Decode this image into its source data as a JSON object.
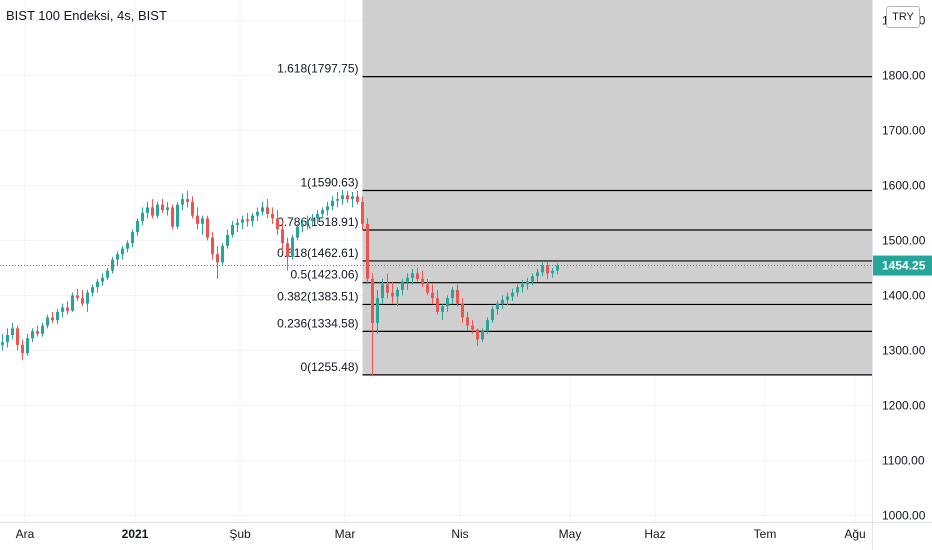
{
  "header": {
    "title": "BIST 100 Endeksi, 4s, BIST",
    "currency_button": "TRY"
  },
  "price_axis": {
    "top_cut_label": "1900.00",
    "last_price_label": "1454.25"
  },
  "colors": {
    "up": "#26a69a",
    "down": "#ef5350",
    "fib_zone": "#cccccc",
    "last_price": "#26a69a"
  },
  "chart_data": {
    "type": "candlestick",
    "symbol": "BIST 100 Endeksi",
    "interval": "4s",
    "exchange": "BIST",
    "currency": "TRY",
    "y_ticks": [
      1000,
      1100,
      1200,
      1300,
      1400,
      1500,
      1600,
      1700,
      1800,
      1900
    ],
    "y_tick_labels": [
      "1000.00",
      "1100.00",
      "1200.00",
      "1300.00",
      "1400.00",
      "1500.00",
      "1600.00",
      "1700.00",
      "1800.00",
      "1900.00"
    ],
    "ylim": [
      988,
      1937
    ],
    "x_ticks": [
      {
        "label": "Ara",
        "bar": 5,
        "bold": false
      },
      {
        "label": "2021",
        "bar": 27,
        "bold": true
      },
      {
        "label": "Şub",
        "bar": 48,
        "bold": false
      },
      {
        "label": "Mar",
        "bar": 69,
        "bold": false
      },
      {
        "label": "Nis",
        "bar": 92,
        "bold": false
      },
      {
        "label": "May",
        "bar": 114,
        "bold": false
      },
      {
        "label": "Haz",
        "bar": 131,
        "bold": false
      },
      {
        "label": "Tem",
        "bar": 153,
        "bold": false
      },
      {
        "label": "Ağu",
        "bar": 171,
        "bold": false
      }
    ],
    "xlim": [
      0,
      174
    ],
    "last_price": 1454.25,
    "fibonacci": {
      "start_bar": 72.5,
      "levels": [
        {
          "ratio": "1.618",
          "price": 1797.75,
          "label": "1.618(1797.75)"
        },
        {
          "ratio": "1",
          "price": 1590.63,
          "label": "1(1590.63)"
        },
        {
          "ratio": "0.786",
          "price": 1518.91,
          "label": "0.786(1518.91)"
        },
        {
          "ratio": "0.618",
          "price": 1462.61,
          "label": "0.618(1462.61)"
        },
        {
          "ratio": "0.5",
          "price": 1423.06,
          "label": "0.5(1423.06)"
        },
        {
          "ratio": "0.382",
          "price": 1383.51,
          "label": "0.382(1383.51)"
        },
        {
          "ratio": "0.236",
          "price": 1334.58,
          "label": "0.236(1334.58)"
        },
        {
          "ratio": "0",
          "price": 1255.48,
          "label": "0(1255.48)"
        }
      ]
    },
    "candles": [
      [
        1310,
        1330,
        1300,
        1315
      ],
      [
        1315,
        1340,
        1305,
        1328
      ],
      [
        1328,
        1350,
        1320,
        1340
      ],
      [
        1340,
        1345,
        1300,
        1310
      ],
      [
        1310,
        1320,
        1283,
        1295
      ],
      [
        1295,
        1330,
        1290,
        1322
      ],
      [
        1322,
        1340,
        1315,
        1335
      ],
      [
        1335,
        1345,
        1325,
        1330
      ],
      [
        1330,
        1350,
        1325,
        1345
      ],
      [
        1345,
        1365,
        1340,
        1360
      ],
      [
        1360,
        1370,
        1350,
        1355
      ],
      [
        1355,
        1375,
        1348,
        1370
      ],
      [
        1370,
        1385,
        1360,
        1378
      ],
      [
        1378,
        1390,
        1365,
        1372
      ],
      [
        1372,
        1405,
        1370,
        1400
      ],
      [
        1400,
        1412,
        1390,
        1395
      ],
      [
        1395,
        1410,
        1380,
        1385
      ],
      [
        1385,
        1410,
        1370,
        1405
      ],
      [
        1405,
        1420,
        1398,
        1415
      ],
      [
        1415,
        1430,
        1405,
        1425
      ],
      [
        1425,
        1440,
        1418,
        1432
      ],
      [
        1432,
        1450,
        1428,
        1445
      ],
      [
        1445,
        1470,
        1440,
        1465
      ],
      [
        1465,
        1480,
        1455,
        1475
      ],
      [
        1475,
        1490,
        1465,
        1485
      ],
      [
        1485,
        1500,
        1478,
        1495
      ],
      [
        1495,
        1520,
        1488,
        1515
      ],
      [
        1515,
        1540,
        1508,
        1535
      ],
      [
        1535,
        1560,
        1528,
        1550
      ],
      [
        1550,
        1570,
        1540,
        1560
      ],
      [
        1560,
        1575,
        1540,
        1545
      ],
      [
        1545,
        1570,
        1540,
        1565
      ],
      [
        1565,
        1575,
        1550,
        1555
      ],
      [
        1555,
        1570,
        1545,
        1560
      ],
      [
        1560,
        1565,
        1520,
        1525
      ],
      [
        1525,
        1570,
        1520,
        1565
      ],
      [
        1565,
        1585,
        1555,
        1575
      ],
      [
        1575,
        1590,
        1560,
        1570
      ],
      [
        1570,
        1580,
        1540,
        1545
      ],
      [
        1545,
        1560,
        1520,
        1530
      ],
      [
        1530,
        1545,
        1510,
        1540
      ],
      [
        1540,
        1545,
        1500,
        1505
      ],
      [
        1505,
        1515,
        1465,
        1475
      ],
      [
        1475,
        1490,
        1430,
        1460
      ],
      [
        1460,
        1495,
        1455,
        1490
      ],
      [
        1490,
        1520,
        1485,
        1510
      ],
      [
        1510,
        1535,
        1505,
        1528
      ],
      [
        1528,
        1540,
        1515,
        1532
      ],
      [
        1532,
        1545,
        1520,
        1538
      ],
      [
        1538,
        1550,
        1525,
        1535
      ],
      [
        1535,
        1550,
        1525,
        1545
      ],
      [
        1545,
        1560,
        1535,
        1552
      ],
      [
        1552,
        1570,
        1545,
        1560
      ],
      [
        1560,
        1575,
        1540,
        1548
      ],
      [
        1548,
        1560,
        1530,
        1540
      ],
      [
        1540,
        1555,
        1510,
        1520
      ],
      [
        1520,
        1535,
        1480,
        1495
      ],
      [
        1495,
        1505,
        1445,
        1470
      ],
      [
        1470,
        1510,
        1465,
        1505
      ],
      [
        1505,
        1530,
        1500,
        1525
      ],
      [
        1525,
        1540,
        1515,
        1530
      ],
      [
        1530,
        1545,
        1520,
        1535
      ],
      [
        1535,
        1548,
        1525,
        1540
      ],
      [
        1540,
        1555,
        1530,
        1548
      ],
      [
        1548,
        1560,
        1540,
        1555
      ],
      [
        1555,
        1570,
        1545,
        1562
      ],
      [
        1562,
        1580,
        1555,
        1572
      ],
      [
        1572,
        1588,
        1560,
        1575
      ],
      [
        1575,
        1592,
        1565,
        1582
      ],
      [
        1582,
        1590,
        1568,
        1575
      ],
      [
        1575,
        1588,
        1560,
        1580
      ],
      [
        1580,
        1590,
        1565,
        1570
      ],
      [
        1570,
        1580,
        1520,
        1530
      ],
      [
        1530,
        1540,
        1420,
        1430
      ],
      [
        1430,
        1440,
        1255,
        1350
      ],
      [
        1350,
        1410,
        1330,
        1395
      ],
      [
        1395,
        1430,
        1385,
        1420
      ],
      [
        1420,
        1440,
        1395,
        1405
      ],
      [
        1405,
        1425,
        1385,
        1398
      ],
      [
        1398,
        1415,
        1380,
        1410
      ],
      [
        1410,
        1430,
        1400,
        1425
      ],
      [
        1425,
        1440,
        1410,
        1432
      ],
      [
        1432,
        1448,
        1420,
        1440
      ],
      [
        1440,
        1450,
        1425,
        1430
      ],
      [
        1430,
        1445,
        1415,
        1420
      ],
      [
        1420,
        1430,
        1400,
        1405
      ],
      [
        1405,
        1420,
        1385,
        1395
      ],
      [
        1395,
        1410,
        1365,
        1370
      ],
      [
        1370,
        1385,
        1355,
        1380
      ],
      [
        1380,
        1400,
        1370,
        1395
      ],
      [
        1395,
        1415,
        1385,
        1410
      ],
      [
        1410,
        1420,
        1380,
        1385
      ],
      [
        1385,
        1395,
        1350,
        1360
      ],
      [
        1360,
        1370,
        1335,
        1345
      ],
      [
        1345,
        1355,
        1330,
        1338
      ],
      [
        1338,
        1340,
        1308,
        1320
      ],
      [
        1320,
        1340,
        1315,
        1335
      ],
      [
        1335,
        1360,
        1330,
        1355
      ],
      [
        1355,
        1380,
        1350,
        1375
      ],
      [
        1375,
        1390,
        1365,
        1385
      ],
      [
        1385,
        1400,
        1375,
        1392
      ],
      [
        1392,
        1405,
        1382,
        1398
      ],
      [
        1398,
        1412,
        1390,
        1405
      ],
      [
        1405,
        1420,
        1398,
        1415
      ],
      [
        1415,
        1428,
        1405,
        1420
      ],
      [
        1420,
        1432,
        1410,
        1425
      ],
      [
        1425,
        1440,
        1418,
        1435
      ],
      [
        1435,
        1448,
        1425,
        1442
      ],
      [
        1442,
        1460,
        1435,
        1455
      ],
      [
        1455,
        1462,
        1430,
        1440
      ],
      [
        1440,
        1450,
        1432,
        1445
      ],
      [
        1445,
        1458,
        1438,
        1454.25
      ]
    ]
  }
}
